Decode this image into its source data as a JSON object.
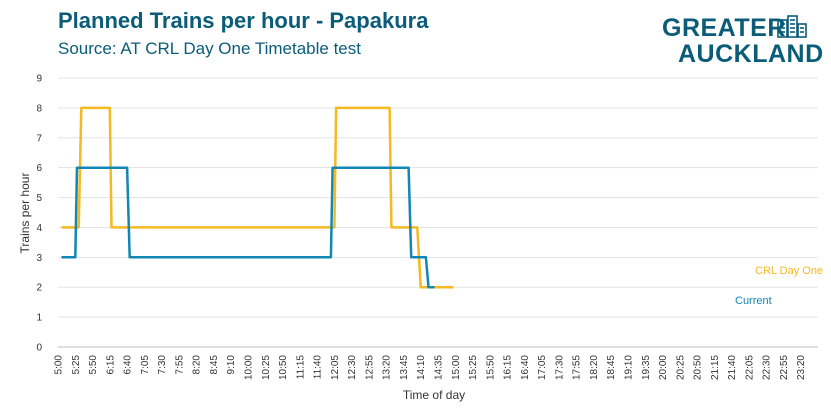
{
  "header": {
    "title": "Planned Trains per hour - Papakura",
    "subtitle": "Source: AT CRL Day One Timetable test"
  },
  "logo": {
    "line1": "GREATER",
    "line2": "AUCKLAND",
    "color": "#0b5c78"
  },
  "chart_data": {
    "type": "line",
    "title": "Planned Trains per hour - Papakura",
    "subtitle": "Source: AT CRL Day One Timetable test",
    "xlabel": "Time of day",
    "ylabel": "Trains per hour",
    "ylim": [
      0,
      9
    ],
    "yticks": [
      "0",
      "1",
      "2",
      "3",
      "4",
      "5",
      "6",
      "7",
      "8",
      "9"
    ],
    "grid": true,
    "x_tick_labels": [
      "5:00",
      "5:25",
      "5:50",
      "6:15",
      "6:40",
      "7:05",
      "7:30",
      "7:55",
      "8:20",
      "8:45",
      "9:10",
      "10:00",
      "10:25",
      "10:50",
      "11:15",
      "11:40",
      "12:05",
      "12:30",
      "12:55",
      "13:20",
      "13:45",
      "14:10",
      "14:35",
      "15:00",
      "15:25",
      "15:50",
      "16:15",
      "16:40",
      "17:05",
      "17:30",
      "17:55",
      "18:20",
      "18:45",
      "19:10",
      "19:35",
      "20:00",
      "20:25",
      "20:50",
      "21:15",
      "21:40",
      "22:05",
      "22:30",
      "22:55",
      "23:20"
    ],
    "series": [
      {
        "name": "CRL Day One",
        "color": "#f5b921",
        "x": [
          0.2,
          1.2,
          1.35,
          3.0,
          3.1,
          16.0,
          16.1,
          19.2,
          19.3,
          20.8,
          21.0,
          21.8,
          22.9
        ],
        "values": [
          4,
          4,
          8,
          8,
          4,
          4,
          8,
          8,
          4,
          4,
          2,
          2,
          2
        ]
      },
      {
        "name": "Current",
        "color": "#1287b4",
        "x": [
          0.2,
          1.0,
          1.1,
          4.0,
          4.15,
          15.8,
          15.9,
          20.3,
          20.45,
          21.3,
          21.45,
          21.8
        ],
        "values": [
          3,
          3,
          6,
          6,
          3,
          3,
          6,
          6,
          3,
          3,
          2,
          2
        ]
      }
    ],
    "x_min": 0,
    "x_max": 44
  }
}
